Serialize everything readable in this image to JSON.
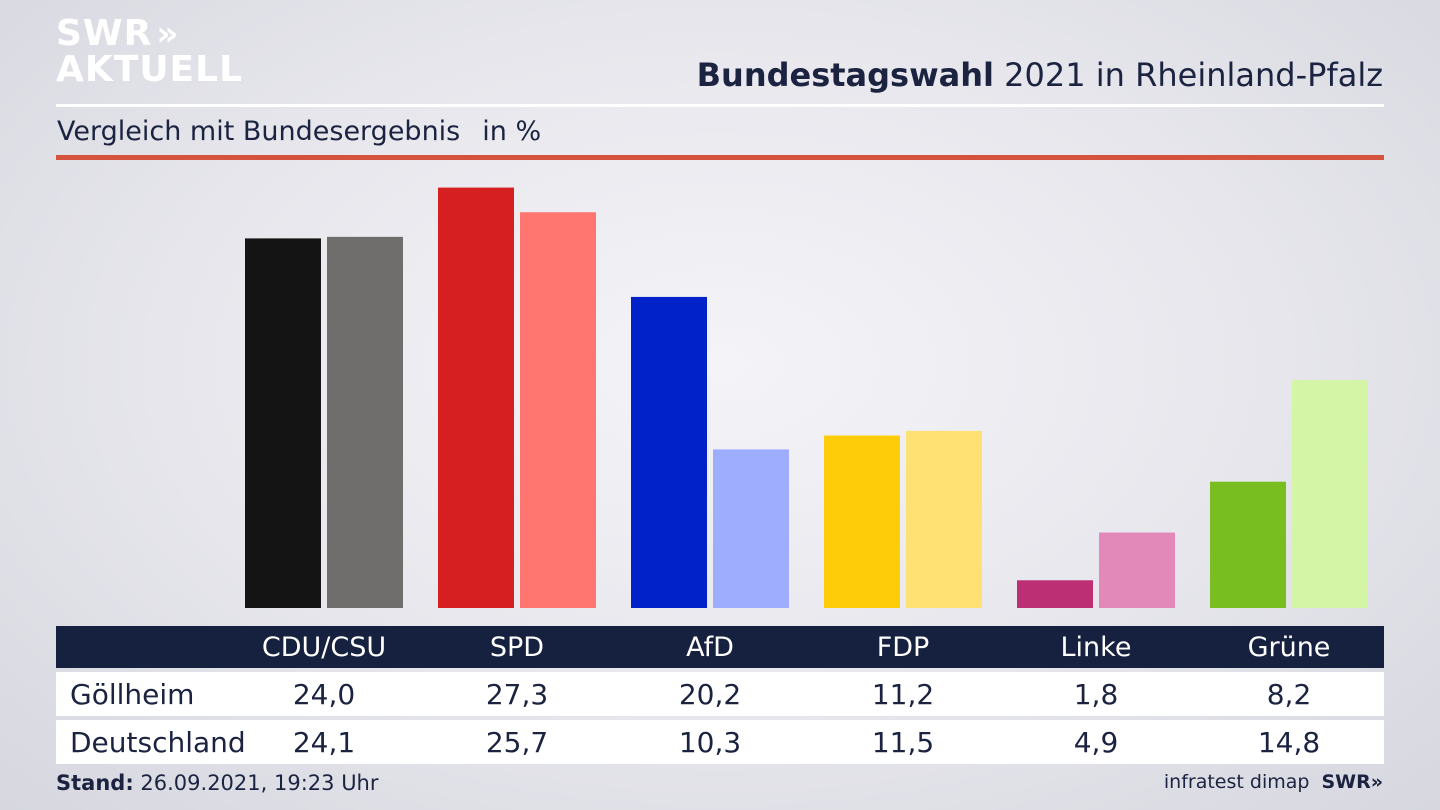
{
  "brand": {
    "line1": "SWR",
    "line2": "AKTUELL",
    "chevrons": "»"
  },
  "header": {
    "title_bold": "Bundestagswahl",
    "title_rest": "2021 in Rheinland-Pfalz"
  },
  "subheader": {
    "text": "Vergleich mit Bundesergebnis",
    "unit": "in %"
  },
  "chart_data": {
    "type": "bar",
    "categories": [
      "CDU/CSU",
      "SPD",
      "AfD",
      "FDP",
      "Linke",
      "Grüne"
    ],
    "series": [
      {
        "name": "Göllheim",
        "values": [
          24.0,
          27.3,
          20.2,
          11.2,
          1.8,
          8.2
        ]
      },
      {
        "name": "Deutschland",
        "values": [
          24.1,
          25.7,
          10.3,
          11.5,
          4.9,
          14.8
        ]
      }
    ],
    "colors": [
      [
        "#141414",
        "#6f6e6c"
      ],
      [
        "#d61f20",
        "#ff7670"
      ],
      [
        "#0022c8",
        "#9fadff"
      ],
      [
        "#ffcc0a",
        "#ffe073"
      ],
      [
        "#bd2f74",
        "#e289ba"
      ],
      [
        "#78be20",
        "#d5f5a6"
      ]
    ],
    "ylim": [
      0,
      30
    ],
    "grid": false
  },
  "table": {
    "headers": [
      "CDU/CSU",
      "SPD",
      "AfD",
      "FDP",
      "Linke",
      "Grüne"
    ],
    "rows": [
      {
        "label": "Göllheim",
        "values": [
          "24,0",
          "27,3",
          "20,2",
          "11,2",
          "1,8",
          "8,2"
        ]
      },
      {
        "label": "Deutschland",
        "values": [
          "24,1",
          "25,7",
          "10,3",
          "11,5",
          "4,9",
          "14,8"
        ]
      }
    ]
  },
  "footer": {
    "stand_label": "Stand:",
    "stand_value": "26.09.2021, 19:23 Uhr",
    "source": "infratest dimap",
    "brand": "SWR",
    "brand_chevrons": "»"
  }
}
